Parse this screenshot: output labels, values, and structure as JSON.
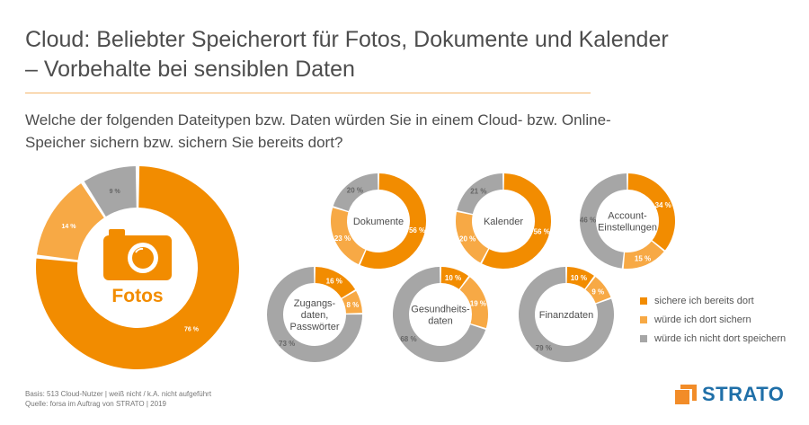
{
  "title": "Cloud: Beliebter Speicherort für Fotos, Dokumente und Kalender – Vorbehalte bei sensiblen Daten",
  "question": "Welche der folgenden Dateitypen bzw. Daten würden Sie in einem Cloud- bzw. Online-Speicher sichern bzw. sichern Sie bereits dort?",
  "colors": {
    "already": "#f28c00",
    "would": "#f7a945",
    "not": "#a6a6a6",
    "brand_blue": "#1f6fa8"
  },
  "chart_data": {
    "type": "pie",
    "series_names": [
      "sichere ich bereits dort",
      "würde ich dort sichern",
      "würde ich nicht dort speichern"
    ],
    "items": [
      {
        "name": "Fotos",
        "values": [
          76,
          14,
          9
        ],
        "labels": [
          "76 %",
          "14 %",
          "9 %"
        ],
        "icon": "camera-icon"
      },
      {
        "name": "Dokumente",
        "values": [
          56,
          23,
          20
        ],
        "labels": [
          "56 %",
          "23 %",
          "20 %"
        ]
      },
      {
        "name": "Kalender",
        "values": [
          56,
          20,
          21
        ],
        "labels": [
          "56 %",
          "20 %",
          "21 %"
        ]
      },
      {
        "name": "Account-Einstellungen",
        "values": [
          34,
          15,
          46
        ],
        "labels": [
          "34 %",
          "15 %",
          "46 %"
        ]
      },
      {
        "name": "Zugangsdaten, Passwörter",
        "values": [
          16,
          8,
          73
        ],
        "labels": [
          "16 %",
          "8 %",
          "73 %"
        ]
      },
      {
        "name": "Gesundheitsdaten",
        "values": [
          10,
          19,
          68
        ],
        "labels": [
          "10 %",
          "19 %",
          "68 %"
        ]
      },
      {
        "name": "Finanzdaten",
        "values": [
          10,
          9,
          79
        ],
        "labels": [
          "10 %",
          "9 %",
          "79 %"
        ]
      }
    ]
  },
  "legend": [
    {
      "label": "sichere ich bereits dort",
      "color": "#f28c00"
    },
    {
      "label": "würde ich dort sichern",
      "color": "#f7a945"
    },
    {
      "label": "würde ich nicht dort speichern",
      "color": "#a6a6a6"
    }
  ],
  "footer": {
    "basis": "Basis: 513 Cloud-Nutzer | weiß nicht / k.A. nicht aufgeführt",
    "source": "Quelle: forsa im Auftrag von STRATO | 2019"
  },
  "logo": {
    "text": "STRATO"
  }
}
